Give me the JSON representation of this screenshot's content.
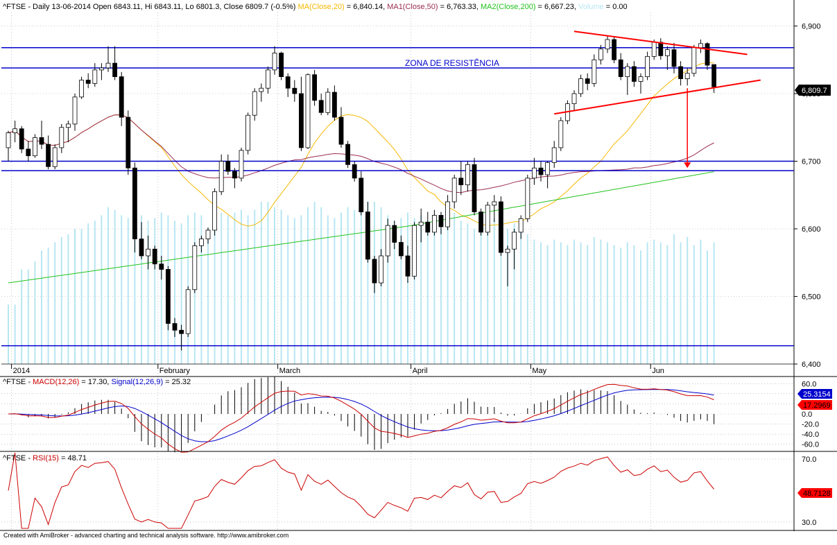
{
  "colors": {
    "background": "#ffffff",
    "grid": "#a0a0a0",
    "volume": "#b7e6f3",
    "ma20": "#f5b800",
    "ma50": "#9b2c52",
    "ma200": "#22c21e",
    "resistance_lines": "#0000cc",
    "trendlines": "#ff0000",
    "macd": "#cc0000",
    "signal": "#0000cc",
    "rsi": "#cc0000",
    "candle_up": "#ffffff",
    "candle_down": "#000000"
  },
  "header": {
    "symbol": "^FTSE",
    "info": " - Daily 13-06-2014 Open 6843.11, Hi 6843.11, Lo 6801.3, Close 6809.7 (-0.5%) ",
    "ma20_label": "MA(Close,20)",
    "ma20_value": " = 6,840.14, ",
    "ma50_label": "MA1(Close,50)",
    "ma50_value": " = 6,763.33, ",
    "ma200_label": "MA2(Close,200)",
    "ma200_value": " = 6,667.23, ",
    "volume_label": "Volume",
    "volume_value": " = 0.00"
  },
  "annotation": "ZONA DE RESISTÊNCIA",
  "macd_header": {
    "symbol": "^FTSE",
    "sep": " - ",
    "macd_label": "MACD(12,26)",
    "macd_value": " = 17.30, ",
    "signal_label": "Signal(12,26,9)",
    "signal_value": " = 25.32"
  },
  "rsi_header": {
    "symbol": "^FTSE",
    "sep": " - ",
    "rsi_label": "RSI(15)",
    "rsi_value": " = 48.71"
  },
  "footer": "Created with AmiBroker - advanced charting and technical analysis software. http://www.amibroker.com",
  "chart_data": [
    {
      "panel": "price",
      "type": "candlestick",
      "ylim": [
        6400,
        6920
      ],
      "y_ticks": [
        "6,400",
        "6,500",
        "6,600",
        "6,700",
        "6,800",
        "6,900"
      ],
      "last_close_label": "6,809.7",
      "x_labels": [
        {
          "label": "2014",
          "index": 1
        },
        {
          "label": "February",
          "index": 23
        },
        {
          "label": "March",
          "index": 41
        },
        {
          "label": "April",
          "index": 61
        },
        {
          "label": "May",
          "index": 79
        },
        {
          "label": "Jun",
          "index": 97
        }
      ],
      "horizontal_lines": [
        6868,
        6838,
        6700,
        6686,
        6427
      ],
      "trendlines": [
        {
          "from": [
            85,
            6892
          ],
          "to": [
            111,
            6858
          ]
        },
        {
          "from": [
            82,
            6770
          ],
          "to": [
            113,
            6820
          ]
        }
      ],
      "target_arrow": {
        "index": 102,
        "from": 6808,
        "to": 6690
      },
      "candles": [
        [
          6720,
          6745,
          6700,
          6742
        ],
        [
          6742,
          6760,
          6728,
          6748
        ],
        [
          6748,
          6752,
          6712,
          6718
        ],
        [
          6718,
          6730,
          6700,
          6708
        ],
        [
          6708,
          6740,
          6705,
          6735
        ],
        [
          6735,
          6760,
          6718,
          6725
        ],
        [
          6725,
          6738,
          6688,
          6692
        ],
        [
          6692,
          6725,
          6688,
          6720
        ],
        [
          6720,
          6755,
          6712,
          6750
        ],
        [
          6750,
          6760,
          6728,
          6755
        ],
        [
          6755,
          6800,
          6745,
          6795
        ],
        [
          6795,
          6825,
          6792,
          6820
        ],
        [
          6820,
          6830,
          6808,
          6815
        ],
        [
          6815,
          6845,
          6810,
          6835
        ],
        [
          6835,
          6845,
          6820,
          6838
        ],
        [
          6838,
          6870,
          6832,
          6845
        ],
        [
          6845,
          6870,
          6820,
          6825
        ],
        [
          6825,
          6832,
          6752,
          6765
        ],
        [
          6765,
          6775,
          6680,
          6690
        ],
        [
          6690,
          6698,
          6565,
          6585
        ],
        [
          6585,
          6610,
          6555,
          6560
        ],
        [
          6560,
          6590,
          6540,
          6570
        ],
        [
          6570,
          6575,
          6540,
          6548
        ],
        [
          6548,
          6560,
          6525,
          6540
        ],
        [
          6540,
          6545,
          6450,
          6460
        ],
        [
          6460,
          6468,
          6440,
          6450
        ],
        [
          6450,
          6458,
          6420,
          6445
        ],
        [
          6445,
          6515,
          6440,
          6510
        ],
        [
          6510,
          6580,
          6505,
          6575
        ],
        [
          6575,
          6590,
          6565,
          6585
        ],
        [
          6585,
          6602,
          6578,
          6598
        ],
        [
          6598,
          6660,
          6590,
          6655
        ],
        [
          6655,
          6710,
          6650,
          6700
        ],
        [
          6700,
          6710,
          6680,
          6685
        ],
        [
          6685,
          6690,
          6660,
          6675
        ],
        [
          6675,
          6720,
          6670,
          6716
        ],
        [
          6716,
          6772,
          6710,
          6768
        ],
        [
          6768,
          6808,
          6760,
          6803
        ],
        [
          6803,
          6815,
          6788,
          6808
        ],
        [
          6808,
          6840,
          6800,
          6835
        ],
        [
          6835,
          6870,
          6828,
          6860
        ],
        [
          6860,
          6862,
          6820,
          6825
        ],
        [
          6825,
          6830,
          6795,
          6808
        ],
        [
          6808,
          6820,
          6788,
          6800
        ],
        [
          6800,
          6825,
          6715,
          6720
        ],
        [
          6720,
          6830,
          6718,
          6828
        ],
        [
          6828,
          6835,
          6782,
          6790
        ],
        [
          6790,
          6800,
          6768,
          6772
        ],
        [
          6772,
          6808,
          6768,
          6802
        ],
        [
          6802,
          6812,
          6760,
          6765
        ],
        [
          6765,
          6780,
          6720,
          6725
        ],
        [
          6725,
          6730,
          6690,
          6695
        ],
        [
          6695,
          6700,
          6670,
          6675
        ],
        [
          6675,
          6685,
          6620,
          6625
        ],
        [
          6625,
          6640,
          6550,
          6555
        ],
        [
          6555,
          6560,
          6505,
          6520
        ],
        [
          6520,
          6570,
          6515,
          6560
        ],
        [
          6560,
          6615,
          6550,
          6605
        ],
        [
          6605,
          6612,
          6570,
          6580
        ],
        [
          6580,
          6590,
          6555,
          6560
        ],
        [
          6560,
          6575,
          6520,
          6530
        ],
        [
          6530,
          6610,
          6525,
          6605
        ],
        [
          6605,
          6630,
          6580,
          6610
        ],
        [
          6610,
          6625,
          6590,
          6595
        ],
        [
          6595,
          6628,
          6590,
          6620
        ],
        [
          6620,
          6625,
          6592,
          6603
        ],
        [
          6603,
          6650,
          6598,
          6640
        ],
        [
          6640,
          6680,
          6630,
          6675
        ],
        [
          6675,
          6700,
          6650,
          6665
        ],
        [
          6665,
          6700,
          6655,
          6695
        ],
        [
          6695,
          6705,
          6620,
          6625
        ],
        [
          6625,
          6630,
          6590,
          6595
        ],
        [
          6595,
          6640,
          6590,
          6635
        ],
        [
          6635,
          6650,
          6610,
          6640
        ],
        [
          6640,
          6648,
          6560,
          6565
        ],
        [
          6565,
          6575,
          6515,
          6570
        ],
        [
          6570,
          6600,
          6540,
          6595
        ],
        [
          6595,
          6620,
          6585,
          6615
        ],
        [
          6615,
          6680,
          6610,
          6675
        ],
        [
          6675,
          6705,
          6665,
          6690
        ],
        [
          6690,
          6700,
          6670,
          6680
        ],
        [
          6680,
          6700,
          6660,
          6698
        ],
        [
          6698,
          6730,
          6690,
          6720
        ],
        [
          6720,
          6765,
          6715,
          6760
        ],
        [
          6760,
          6790,
          6755,
          6785
        ],
        [
          6785,
          6805,
          6775,
          6800
        ],
        [
          6800,
          6828,
          6795,
          6822
        ],
        [
          6822,
          6830,
          6805,
          6815
        ],
        [
          6815,
          6858,
          6810,
          6850
        ],
        [
          6850,
          6872,
          6843,
          6866
        ],
        [
          6866,
          6885,
          6860,
          6880
        ],
        [
          6880,
          6885,
          6845,
          6850
        ],
        [
          6850,
          6860,
          6820,
          6825
        ],
        [
          6825,
          6845,
          6798,
          6840
        ],
        [
          6840,
          6848,
          6810,
          6818
        ],
        [
          6818,
          6830,
          6800,
          6825
        ],
        [
          6825,
          6862,
          6820,
          6855
        ],
        [
          6855,
          6880,
          6850,
          6876
        ],
        [
          6876,
          6882,
          6850,
          6856
        ],
        [
          6856,
          6870,
          6835,
          6865
        ],
        [
          6865,
          6875,
          6830,
          6840
        ],
        [
          6840,
          6848,
          6812,
          6822
        ],
        [
          6822,
          6838,
          6812,
          6830
        ],
        [
          6830,
          6872,
          6825,
          6868
        ],
        [
          6868,
          6880,
          6860,
          6874
        ],
        [
          6874,
          6876,
          6835,
          6842
        ],
        [
          6843,
          6843,
          6801,
          6810
        ]
      ],
      "volume": [
        0.22,
        0.22,
        0.35,
        0.35,
        0.38,
        0.42,
        0.43,
        0.45,
        0.47,
        0.48,
        0.5,
        0.5,
        0.52,
        0.53,
        0.55,
        0.58,
        0.57,
        0.55,
        0.54,
        0.55,
        0.55,
        0.53,
        0.54,
        0.56,
        0.55,
        0.53,
        0.52,
        0.55,
        0.56,
        0.55,
        0.5,
        0.52,
        0.56,
        0.55,
        0.56,
        0.57,
        0.55,
        0.57,
        0.6,
        0.6,
        0.58,
        0.57,
        0.55,
        0.54,
        0.55,
        0.58,
        0.6,
        0.58,
        0.55,
        0.54,
        0.56,
        0.58,
        0.57,
        0.58,
        0.6,
        0.6,
        0.58,
        0.55,
        0.53,
        0.54,
        0.56,
        0.54,
        0.55,
        0.53,
        0.52,
        0.5,
        0.54,
        0.56,
        0.53,
        0.52,
        0.5,
        0.5,
        0.52,
        0.54,
        0.5,
        0.5,
        0.52,
        0.49,
        0.48,
        0.46,
        0.45,
        0.44,
        0.46,
        0.45,
        0.44,
        0.46,
        0.45,
        0.44,
        0.47,
        0.46,
        0.45,
        0.44,
        0.43,
        0.45,
        0.44,
        0.42,
        0.45,
        0.46,
        0.45,
        0.44,
        0.48,
        0.45,
        0.47,
        0.44,
        0.46,
        0.42,
        0.45
      ]
    },
    {
      "panel": "macd",
      "type": "line",
      "ylim": [
        -70,
        70
      ],
      "y_ticks": [
        "60.0",
        "40.0",
        "20.0",
        "0.0",
        "-20.0",
        "-40.0",
        "-60.0"
      ],
      "last_signal_label": "25.3154",
      "last_macd_label": "17.2969"
    },
    {
      "panel": "rsi",
      "type": "line",
      "ylim": [
        26,
        74
      ],
      "y_ticks": [
        "70.0",
        "30.0"
      ],
      "last_rsi_label": "48.7128"
    }
  ]
}
